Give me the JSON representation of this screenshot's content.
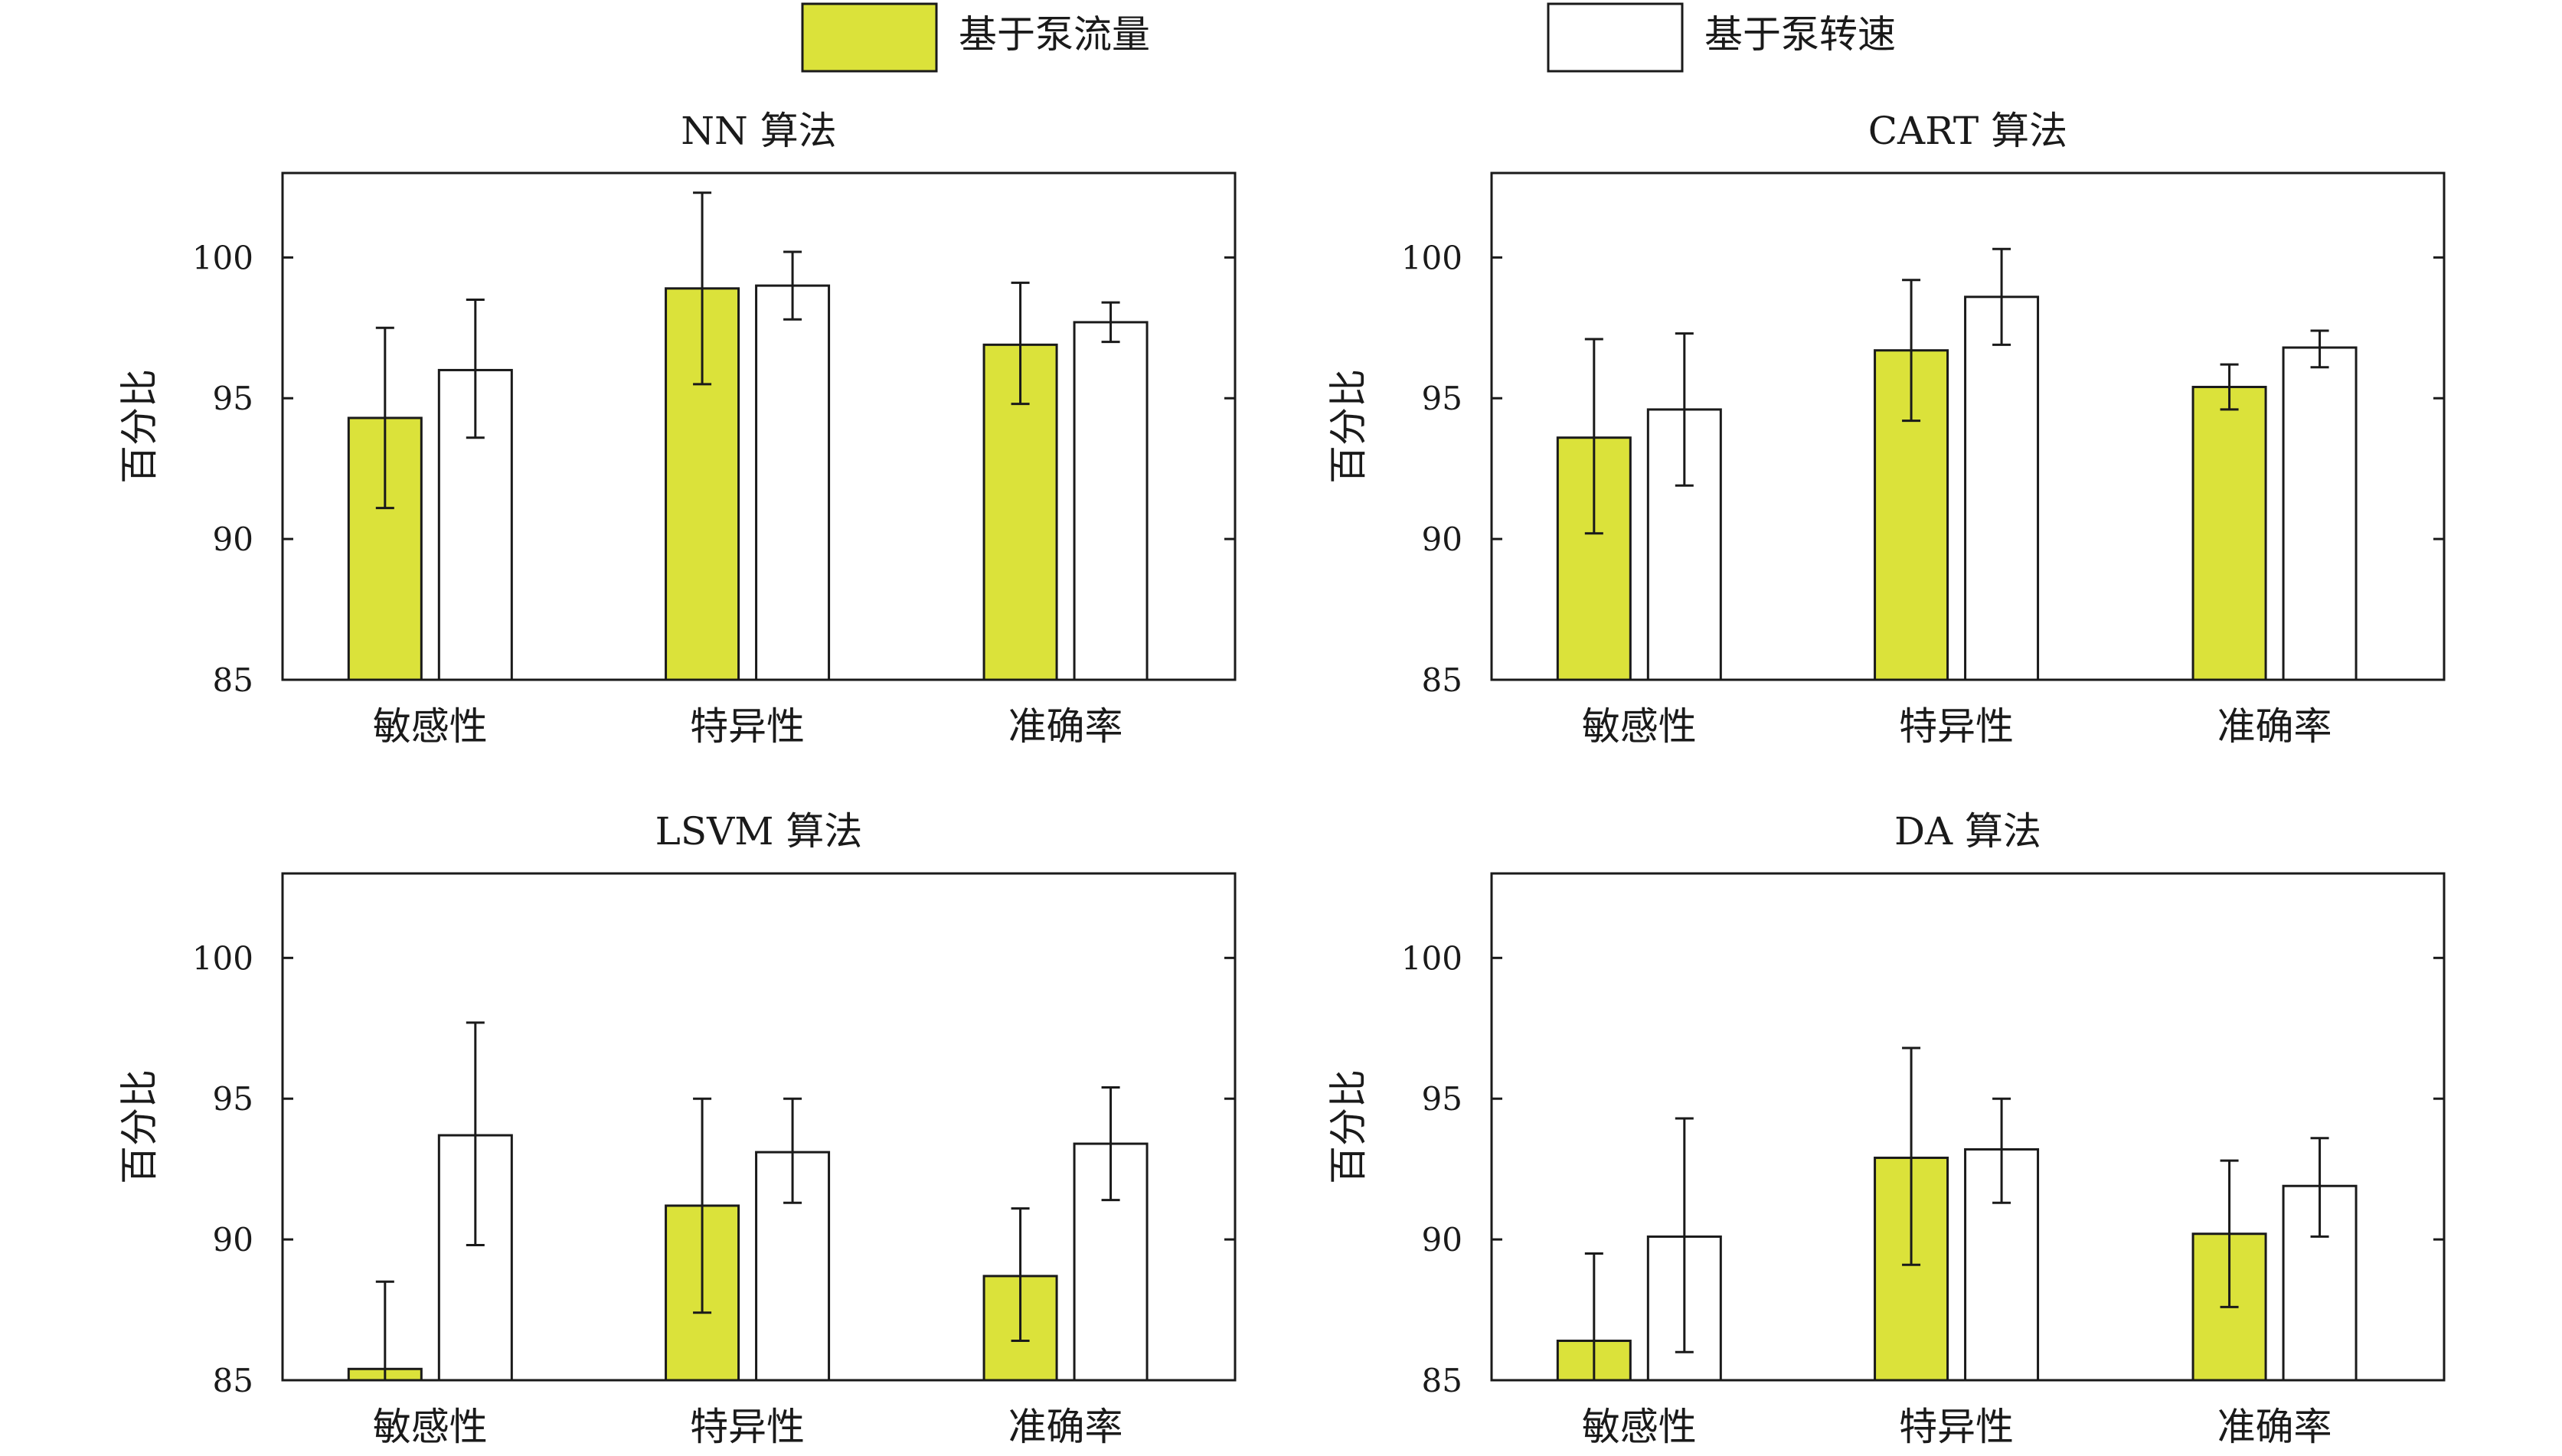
{
  "legend": {
    "items": [
      {
        "label": "基于泵流量",
        "color": "#dbe23a"
      },
      {
        "label": "基于泵转速",
        "color": "#ffffff"
      }
    ]
  },
  "colors": {
    "flow": "#dbe23a",
    "speed": "#ffffff",
    "stroke": "#1a1a1a"
  },
  "chart_data": [
    {
      "type": "bar",
      "title": "NN 算法",
      "xlabel": "",
      "ylabel": "百分比",
      "ylim": [
        85,
        103
      ],
      "yticks": [
        85,
        90,
        95,
        100
      ],
      "categories": [
        "敏感性",
        "特异性",
        "准确率"
      ],
      "series": [
        {
          "name": "基于泵流量",
          "values": [
            94.3,
            98.9,
            96.9
          ],
          "err_low": [
            91.1,
            95.5,
            94.8
          ],
          "err_high": [
            97.5,
            102.3,
            99.1
          ]
        },
        {
          "name": "基于泵转速",
          "values": [
            96.0,
            99.0,
            97.7
          ],
          "err_low": [
            93.6,
            97.8,
            97.0
          ],
          "err_high": [
            98.5,
            100.2,
            98.4
          ]
        }
      ]
    },
    {
      "type": "bar",
      "title": "CART 算法",
      "xlabel": "",
      "ylabel": "百分比",
      "ylim": [
        85,
        103
      ],
      "yticks": [
        85,
        90,
        95,
        100
      ],
      "categories": [
        "敏感性",
        "特异性",
        "准确率"
      ],
      "series": [
        {
          "name": "基于泵流量",
          "values": [
            93.6,
            96.7,
            95.4
          ],
          "err_low": [
            90.2,
            94.2,
            94.6
          ],
          "err_high": [
            97.1,
            99.2,
            96.2
          ]
        },
        {
          "name": "基于泵转速",
          "values": [
            94.6,
            98.6,
            96.8
          ],
          "err_low": [
            91.9,
            96.9,
            96.1
          ],
          "err_high": [
            97.3,
            100.3,
            97.4
          ]
        }
      ]
    },
    {
      "type": "bar",
      "title": "LSVM 算法",
      "xlabel": "",
      "ylabel": "百分比",
      "ylim": [
        85,
        103
      ],
      "yticks": [
        85,
        90,
        95,
        100
      ],
      "categories": [
        "敏感性",
        "特异性",
        "准确率"
      ],
      "series": [
        {
          "name": "基于泵流量",
          "values": [
            85.4,
            91.2,
            88.7
          ],
          "err_low": [
            85.0,
            87.4,
            86.4
          ],
          "err_high": [
            88.5,
            95.0,
            91.1
          ]
        },
        {
          "name": "基于泵转速",
          "values": [
            93.7,
            93.1,
            93.4
          ],
          "err_low": [
            89.8,
            91.3,
            91.4
          ],
          "err_high": [
            97.7,
            95.0,
            95.4
          ]
        }
      ]
    },
    {
      "type": "bar",
      "title": "DA 算法",
      "xlabel": "",
      "ylabel": "百分比",
      "ylim": [
        85,
        103
      ],
      "yticks": [
        85,
        90,
        95,
        100
      ],
      "categories": [
        "敏感性",
        "特异性",
        "准确率"
      ],
      "series": [
        {
          "name": "基于泵流量",
          "values": [
            86.4,
            92.9,
            90.2
          ],
          "err_low": [
            85.0,
            89.1,
            87.6
          ],
          "err_high": [
            89.5,
            96.8,
            92.8
          ]
        },
        {
          "name": "基于泵转速",
          "values": [
            90.1,
            93.2,
            91.9
          ],
          "err_low": [
            86.0,
            91.3,
            90.1
          ],
          "err_high": [
            94.3,
            95.0,
            93.6
          ]
        }
      ]
    }
  ]
}
